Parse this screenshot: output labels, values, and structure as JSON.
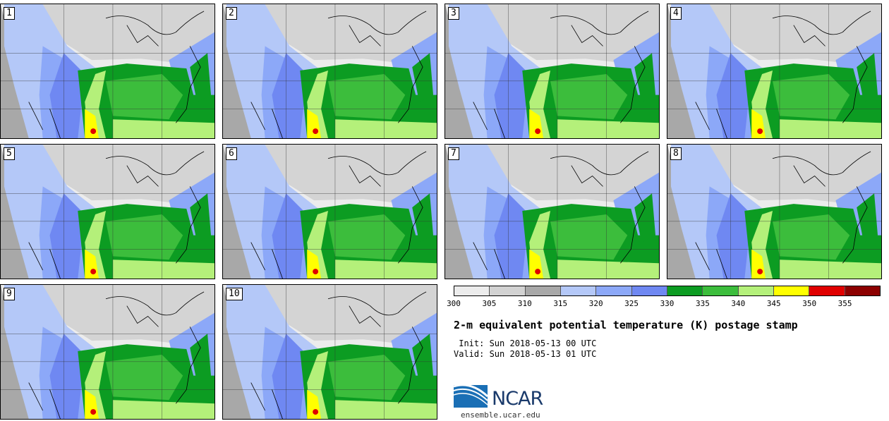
{
  "panels": [
    {
      "label": "1"
    },
    {
      "label": "2"
    },
    {
      "label": "3"
    },
    {
      "label": "4"
    },
    {
      "label": "5"
    },
    {
      "label": "6"
    },
    {
      "label": "7"
    },
    {
      "label": "8"
    },
    {
      "label": "9"
    },
    {
      "label": "10"
    }
  ],
  "legend": {
    "colors": [
      "#ececec",
      "#d2d2d2",
      "#a8a8a8",
      "#b4c8f8",
      "#8ca8f8",
      "#6f88f2",
      "#0c9c22",
      "#3cbd3c",
      "#b4f07a",
      "#ffff00",
      "#e00000",
      "#8c0000"
    ],
    "ticks": [
      "300",
      "305",
      "310",
      "315",
      "320",
      "325",
      "330",
      "335",
      "340",
      "345",
      "350",
      "355"
    ]
  },
  "title": "2-m equivalent potential temperature (K) postage stamp",
  "init": " Init: Sun 2018-05-13 00 UTC",
  "valid": "Valid: Sun 2018-05-13 01 UTC",
  "logo": {
    "text": "NCAR",
    "site": "ensemble.ucar.edu",
    "color": "#1a6fb5"
  }
}
